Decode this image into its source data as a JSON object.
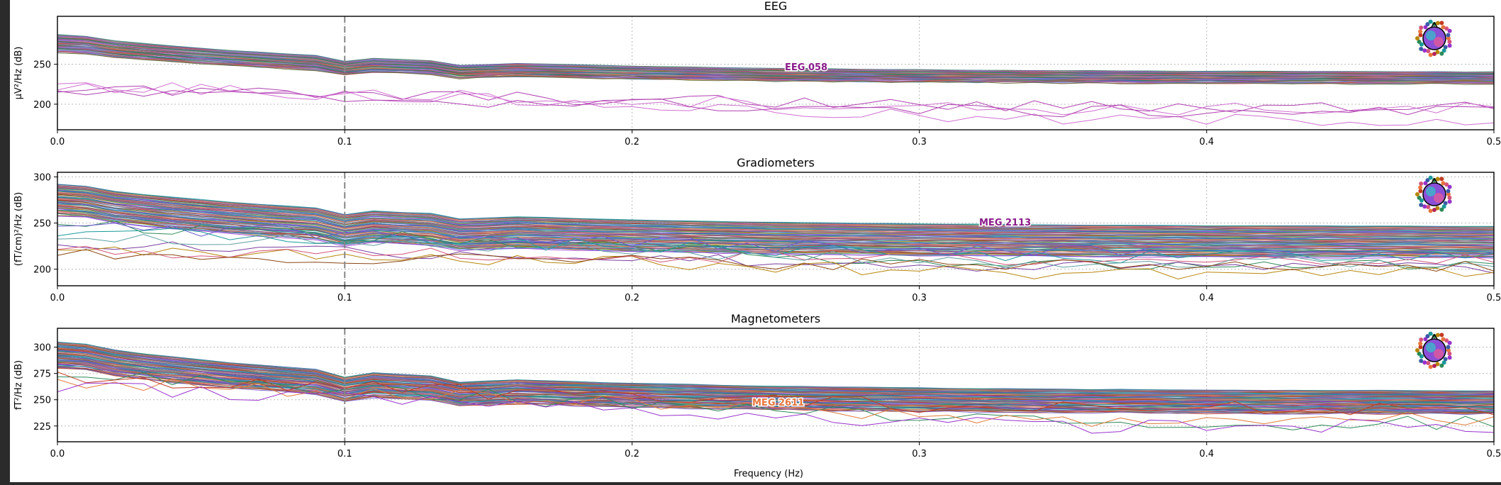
{
  "chart_data": [
    {
      "type": "line",
      "title": "EEG",
      "ylabel": "µV²/Hz (dB)",
      "xlim": [
        0.0,
        0.5
      ],
      "xticks": [
        "0.0",
        "0.1",
        "0.2",
        "0.3",
        "0.4",
        "0.5"
      ],
      "ylim": [
        168,
        310
      ],
      "yticks": [
        200,
        250
      ],
      "grid": true,
      "marker_x": 0.1,
      "highlight_label": "EEG 058",
      "highlight_color": "#8a1a8a",
      "legend": "top-right sensor head map",
      "n_channels": 60,
      "bundle_top_db": 287,
      "bundle_bottom_db": 265,
      "bundle_end_top_db": 240,
      "bundle_end_bottom_db": 225,
      "outlier_start_db": [
        226,
        218
      ],
      "outlier_end_db": [
        180,
        190
      ],
      "palette": [
        "#1f7a6e",
        "#2e8b57",
        "#6a5acd",
        "#c06080",
        "#8fbc8f",
        "#b03060",
        "#7b68ee",
        "#d2691e",
        "#9370db",
        "#4682b4",
        "#cd5c5c",
        "#556b2f"
      ]
    },
    {
      "type": "line",
      "title": "Gradiometers",
      "ylabel": "(fT/cm)²/Hz (dB)",
      "xlim": [
        0.0,
        0.5
      ],
      "xticks": [
        "0.0",
        "0.1",
        "0.2",
        "0.3",
        "0.4",
        "0.5"
      ],
      "ylim": [
        182,
        305
      ],
      "yticks": [
        200,
        250,
        300
      ],
      "grid": true,
      "marker_x": 0.1,
      "highlight_label": "MEG 2113",
      "highlight_color": "#8a1a8a",
      "legend": "top-right sensor head map",
      "n_channels": 204,
      "bundle_top_db": 292,
      "bundle_bottom_db": 258,
      "bundle_end_top_db": 246,
      "bundle_end_bottom_db": 212,
      "outlier_start_db": [
        250,
        228
      ],
      "outlier_end_db": [
        205,
        195
      ],
      "palette": [
        "#1a9a9a",
        "#3b5ba5",
        "#2e8b57",
        "#d4547a",
        "#e07b39",
        "#7b3fa0",
        "#5f9ea0",
        "#c23b22",
        "#6a5acd",
        "#8b4513",
        "#20b2aa",
        "#b8860b",
        "#4169e1",
        "#9932cc"
      ]
    },
    {
      "type": "line",
      "title": "Magnetometers",
      "ylabel": "fT²/Hz (dB)",
      "xlim": [
        0.0,
        0.5
      ],
      "xticks": [
        "0.0",
        "0.1",
        "0.2",
        "0.3",
        "0.4",
        "0.5"
      ],
      "xlabel": "Frequency (Hz)",
      "ylim": [
        210,
        318
      ],
      "yticks": [
        225,
        250,
        275,
        300
      ],
      "grid": true,
      "marker_x": 0.1,
      "highlight_label": "MEG 2611",
      "highlight_color": "#e8743b",
      "legend": "top-right sensor head map",
      "n_channels": 102,
      "bundle_top_db": 305,
      "bundle_bottom_db": 280,
      "bundle_end_top_db": 258,
      "bundle_end_bottom_db": 236,
      "outlier_start_db": [
        274,
        268
      ],
      "outlier_end_db": [
        228,
        224
      ],
      "palette": [
        "#3b5ba5",
        "#1a9a9a",
        "#2e8b57",
        "#d4547a",
        "#7b3fa0",
        "#e07b39",
        "#5f9ea0",
        "#8b4513",
        "#c23b22",
        "#6a5acd",
        "#20b2aa",
        "#9932cc"
      ]
    }
  ]
}
